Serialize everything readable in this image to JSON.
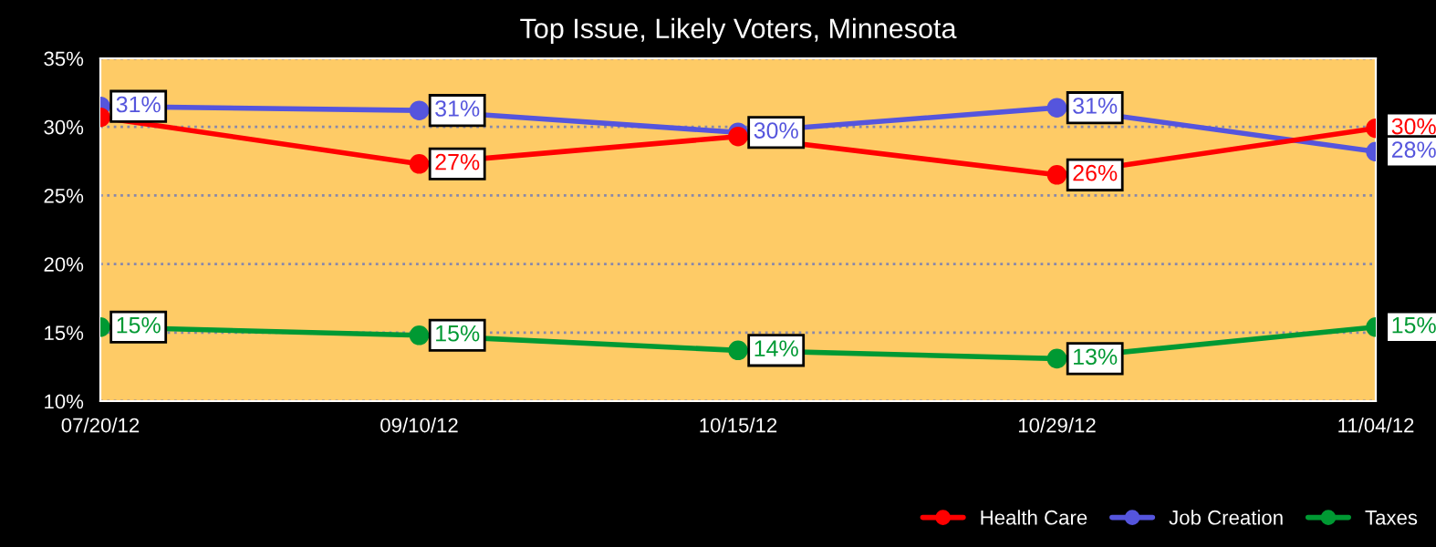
{
  "chart_data": {
    "type": "line",
    "title": "Top Issue, Likely Voters, Minnesota",
    "categories": [
      "07/20/12",
      "09/10/12",
      "10/15/12",
      "10/29/12",
      "11/04/12"
    ],
    "series": [
      {
        "name": "Health Care",
        "color": "#ff0000",
        "values": [
          30.7,
          27.3,
          29.3,
          26.5,
          29.9
        ],
        "value_labels": [
          null,
          "27%",
          null,
          "26%",
          "30%"
        ]
      },
      {
        "name": "Job Creation",
        "color": "#5555dd",
        "values": [
          31.5,
          31.2,
          29.6,
          31.4,
          28.2
        ],
        "value_labels": [
          "31%",
          "31%",
          "30%",
          "31%",
          "28%"
        ]
      },
      {
        "name": "Taxes",
        "color": "#009933",
        "values": [
          15.4,
          14.8,
          13.7,
          13.1,
          15.4
        ],
        "value_labels": [
          "15%",
          "15%",
          "14%",
          "13%",
          "15%"
        ]
      }
    ],
    "ylim": [
      10,
      35
    ],
    "yticks": [
      {
        "value": 10,
        "label": "10%"
      },
      {
        "value": 15,
        "label": "15%"
      },
      {
        "value": 20,
        "label": "20%"
      },
      {
        "value": 25,
        "label": "25%"
      },
      {
        "value": 30,
        "label": "30%"
      },
      {
        "value": 35,
        "label": "35%"
      }
    ],
    "grid": "y",
    "legend": "bottom right",
    "marker": "circle",
    "line_style": "solid"
  }
}
